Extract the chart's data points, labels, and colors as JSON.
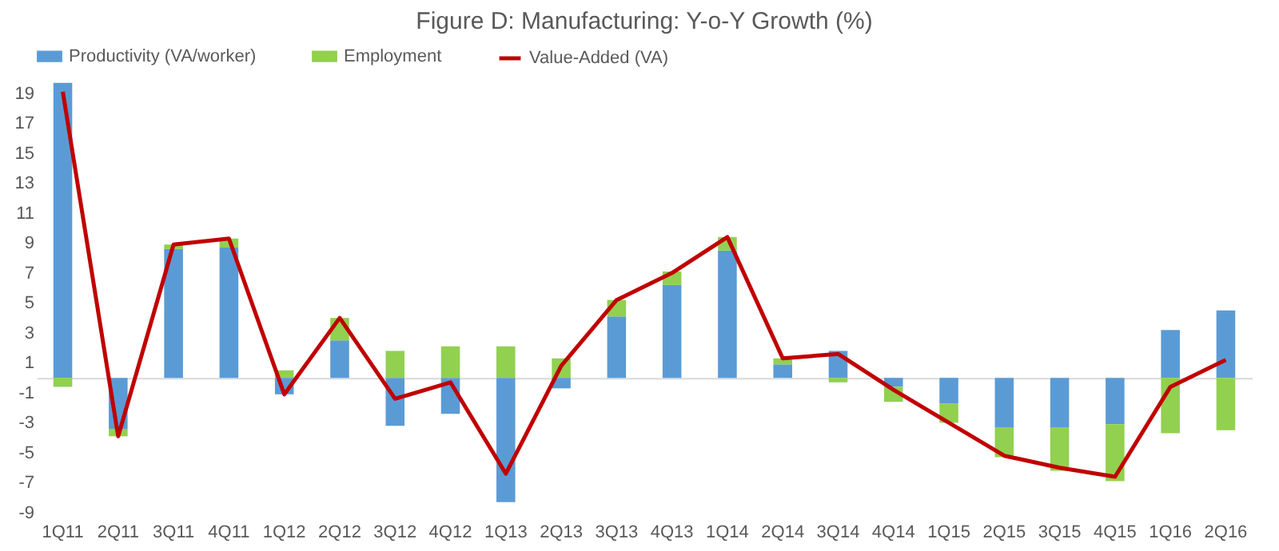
{
  "chart_data": {
    "type": "bar",
    "title": "Figure D: Manufacturing: Y-o-Y Growth (%)",
    "stacked": true,
    "legend": "top",
    "categories": [
      "1Q11",
      "2Q11",
      "3Q11",
      "4Q11",
      "1Q12",
      "2Q12",
      "3Q12",
      "4Q12",
      "1Q13",
      "2Q13",
      "3Q13",
      "4Q13",
      "1Q14",
      "2Q14",
      "3Q14",
      "4Q14",
      "1Q15",
      "2Q15",
      "3Q15",
      "4Q15",
      "1Q16",
      "2Q16"
    ],
    "series": [
      {
        "name": "Productivity (VA/worker)",
        "color": "#5b9bd5",
        "values": [
          19.7,
          -3.4,
          8.6,
          8.7,
          -1.1,
          2.5,
          -3.2,
          -2.4,
          -8.3,
          -0.7,
          4.1,
          6.2,
          8.5,
          0.9,
          1.8,
          -0.6,
          -1.7,
          -3.3,
          -3.3,
          -3.1,
          3.2,
          4.5
        ]
      },
      {
        "name": "Employment",
        "color": "#92d050",
        "values": [
          -0.6,
          -0.5,
          0.3,
          0.6,
          0.5,
          1.5,
          1.8,
          2.1,
          2.1,
          1.3,
          1.1,
          0.9,
          0.9,
          0.4,
          -0.3,
          -1.0,
          -1.3,
          -2.0,
          -2.9,
          -3.8,
          -3.7,
          -3.5
        ]
      },
      {
        "name": "Value-Added (VA)",
        "type": "line",
        "color": "#c00000",
        "values": [
          19.1,
          -3.9,
          8.9,
          9.3,
          -1.1,
          4.0,
          -1.4,
          -0.3,
          -6.4,
          0.8,
          5.2,
          7.0,
          9.4,
          1.3,
          1.6,
          -0.8,
          -3.0,
          -5.2,
          -6.0,
          -6.6,
          -0.6,
          1.2
        ]
      }
    ],
    "ylim": [
      -9,
      20
    ],
    "yticks": [
      -9,
      -7,
      -5,
      -3,
      -1,
      1,
      3,
      5,
      7,
      9,
      11,
      13,
      15,
      17,
      19
    ],
    "grid": false
  }
}
